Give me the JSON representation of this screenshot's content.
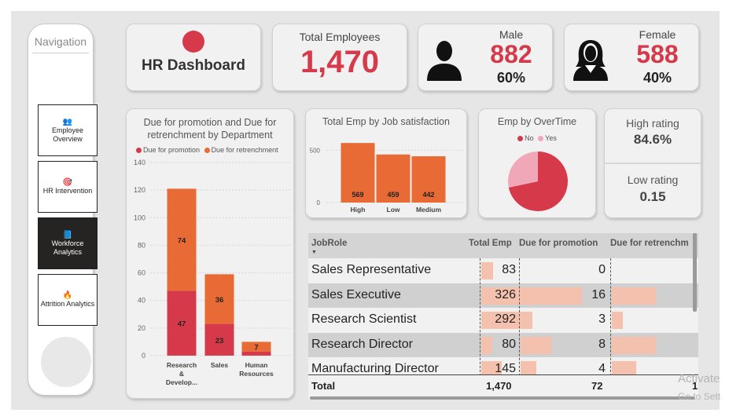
{
  "navigation": {
    "title": "Navigation",
    "items": [
      {
        "label": "Employee Overview",
        "icon": "people-icon",
        "glyph": "👥",
        "active": false
      },
      {
        "label": "HR Intervention",
        "icon": "target-icon",
        "glyph": "🎯",
        "active": false
      },
      {
        "label": "Workforce Analytics",
        "icon": "tablet-icon",
        "glyph": "📘",
        "active": true
      },
      {
        "label": "Attrition Analytics",
        "icon": "fire-icon",
        "glyph": "🔥",
        "active": false
      }
    ]
  },
  "header": {
    "title": "HR Dashboard",
    "total_label": "Total Employees",
    "total_value": "1,470",
    "male_label": "Male",
    "male_value": "882",
    "male_pct": "60%",
    "female_label": "Female",
    "female_value": "588",
    "female_pct": "40%"
  },
  "colors": {
    "primary_red": "#d63a4a",
    "orange": "#e86a35",
    "pink": "#f0a8b8",
    "table_bar": "#f4c1af"
  },
  "promo_chart": {
    "title": "Due for promotion and Due for retrenchment by Department",
    "legend": [
      "Due for promotion",
      "Due for retrenchment"
    ],
    "y_ticks": [
      "140",
      "120",
      "100",
      "80",
      "60",
      "40",
      "20",
      "0"
    ],
    "category_labels": [
      [
        "Research",
        "&",
        "Develop..."
      ],
      [
        "Sales"
      ],
      [
        "Human",
        "Resources"
      ]
    ],
    "value_labels_promotion": [
      "47",
      "23",
      ""
    ],
    "value_labels_retrenchment": [
      "74",
      "36",
      "7"
    ]
  },
  "job_chart": {
    "title": "Total Emp by Job satisfaction",
    "y_ticks": [
      "500",
      "0"
    ],
    "categories": [
      "High",
      "Low",
      "Medium"
    ],
    "value_labels": [
      "569",
      "459",
      "442"
    ]
  },
  "overtime_chart": {
    "title": "Emp by OverTime",
    "legend": [
      "No",
      "Yes"
    ]
  },
  "rating": {
    "high_label": "High rating",
    "high_value": "84.6%",
    "low_label": "Low rating",
    "low_value": "0.15"
  },
  "table": {
    "headers": {
      "role": "JobRole",
      "total": "Total Emp",
      "promotion": "Due for promotion",
      "retrenchment": "Due for retrenchm"
    },
    "rows": [
      {
        "role": "Sales Representative",
        "total": "83",
        "promotion": "0",
        "retrenchment_bar": 0
      },
      {
        "role": "Sales Executive",
        "total": "326",
        "promotion": "16",
        "retrenchment_bar": 1.0
      },
      {
        "role": "Research Scientist",
        "total": "292",
        "promotion": "3",
        "retrenchment_bar": 0.25
      },
      {
        "role": "Research Director",
        "total": "80",
        "promotion": "8",
        "retrenchment_bar": 1.0
      },
      {
        "role": "Manufacturing Director",
        "total": "145",
        "promotion": "4",
        "retrenchment_bar": 0.55
      }
    ],
    "totals": {
      "label": "Total",
      "total": "1,470",
      "promotion": "72",
      "retrenchment": "1"
    }
  },
  "chart_data": [
    {
      "type": "bar",
      "title": "Due for promotion and Due for retrenchment by Department",
      "stacked": true,
      "categories": [
        "Research & Develop...",
        "Sales",
        "Human Resources"
      ],
      "series": [
        {
          "name": "Due for promotion",
          "values": [
            47,
            23,
            3
          ],
          "color": "#d63a4a"
        },
        {
          "name": "Due for retrenchment",
          "values": [
            74,
            36,
            7
          ],
          "color": "#e86a35"
        }
      ],
      "ylim": [
        0,
        140
      ],
      "legend": "top-left"
    },
    {
      "type": "bar",
      "title": "Total Emp by Job satisfaction",
      "categories": [
        "High",
        "Low",
        "Medium"
      ],
      "values": [
        569,
        459,
        442
      ],
      "color": "#e86a35",
      "ylim": [
        0,
        600
      ]
    },
    {
      "type": "pie",
      "title": "Emp by OverTime",
      "categories": [
        "No",
        "Yes"
      ],
      "values": [
        1054,
        416
      ],
      "colors": [
        "#d63a4a",
        "#f0a8b8"
      ],
      "legend": "top"
    }
  ],
  "watermark": {
    "line1": "Activate",
    "line2": "Go to Sett"
  }
}
